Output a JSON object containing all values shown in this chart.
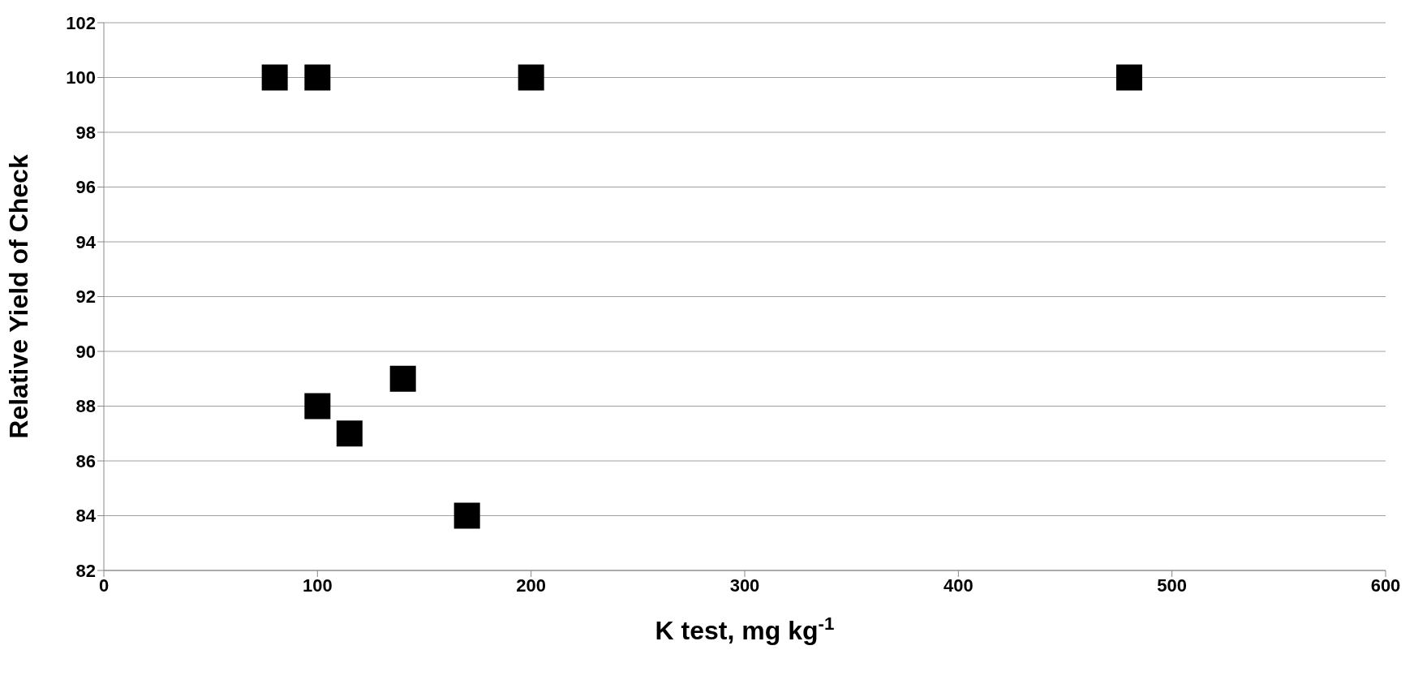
{
  "chart_data": {
    "type": "scatter",
    "xlabel": "K test, mg kg$^{-1}$",
    "ylabel": "Relative Yield of Check",
    "x": [
      80,
      100,
      200,
      480,
      100,
      115,
      140,
      170
    ],
    "series": [
      {
        "color": "#000000",
        "values": [
          100,
          100,
          100,
          100,
          88,
          87,
          89,
          84
        ]
      }
    ],
    "xlim": [
      0,
      600
    ],
    "xticks": [
      0,
      100,
      200,
      300,
      400,
      500,
      600
    ],
    "ylim": [
      82,
      102
    ],
    "yticks": [
      82,
      84,
      86,
      88,
      90,
      92,
      94,
      96,
      98,
      100,
      102
    ],
    "grid": "y",
    "marker": "square",
    "legend": false
  }
}
